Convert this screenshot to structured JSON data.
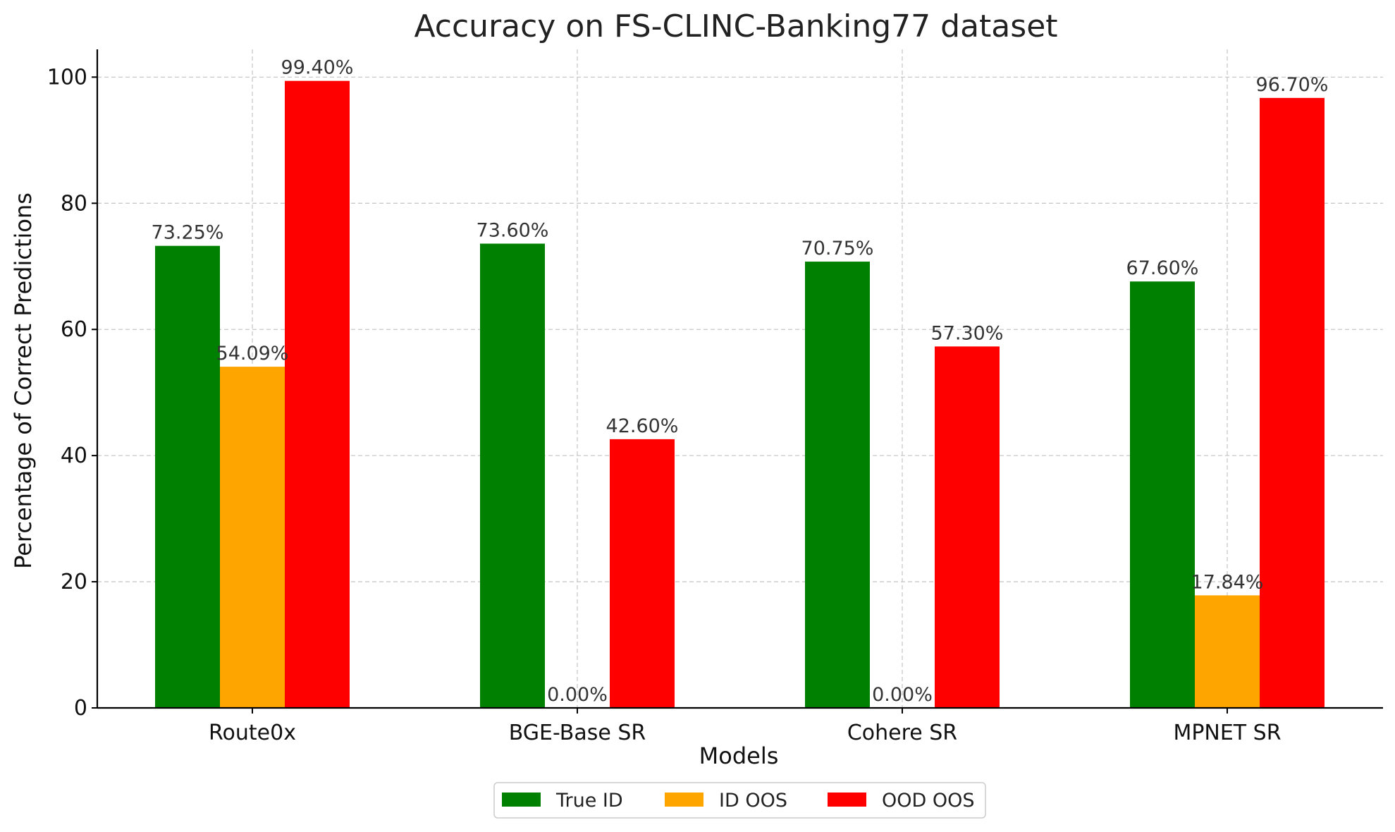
{
  "chart_data": {
    "type": "bar",
    "title": "Accuracy on FS-CLINC-Banking77 dataset",
    "xlabel": "Models",
    "ylabel": "Percentage of Correct Predictions",
    "categories": [
      "Route0x",
      "BGE-Base SR",
      "Cohere SR",
      "MPNET SR"
    ],
    "series": [
      {
        "name": "True ID",
        "color": "#008000",
        "values": [
          73.25,
          73.6,
          70.75,
          67.6
        ],
        "labels": [
          "73.25%",
          "73.60%",
          "70.75%",
          "67.60%"
        ]
      },
      {
        "name": "ID OOS",
        "color": "#FFA500",
        "values": [
          54.09,
          0.0,
          0.0,
          17.84
        ],
        "labels": [
          "54.09%",
          "0.00%",
          "0.00%",
          "17.84%"
        ]
      },
      {
        "name": "OOD OOS",
        "color": "#FF0000",
        "values": [
          99.4,
          42.6,
          57.3,
          96.7
        ],
        "labels": [
          "99.40%",
          "42.60%",
          "57.30%",
          "96.70%"
        ]
      }
    ],
    "ylim": [
      0,
      104.4
    ],
    "yticks": [
      0,
      20,
      40,
      60,
      80,
      100
    ],
    "grid": true,
    "legend_position": "bottom-center"
  }
}
